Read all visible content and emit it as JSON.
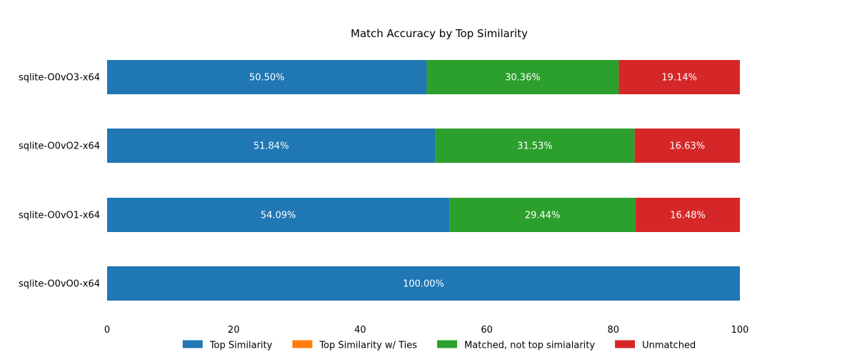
{
  "chart_data": {
    "type": "bar",
    "orientation": "horizontal",
    "stacked": true,
    "title": "Match Accuracy by Top Similarity",
    "categories": [
      "sqlite-O0vO3-x64",
      "sqlite-O0vO2-x64",
      "sqlite-O0vO1-x64",
      "sqlite-O0vO0-x64"
    ],
    "series": [
      {
        "name": "Top Similarity",
        "color": "#1f77b4",
        "values": [
          50.5,
          51.84,
          54.09,
          100.0
        ],
        "labels": [
          "50.50%",
          "51.84%",
          "54.09%",
          "100.00%"
        ]
      },
      {
        "name": "Top Similarity w/ Ties",
        "color": "#ff7f0e",
        "values": [
          0,
          0,
          0,
          0
        ],
        "labels": [
          "",
          "",
          "",
          ""
        ]
      },
      {
        "name": "Matched, not top simialarity",
        "color": "#2ca02c",
        "values": [
          30.36,
          31.53,
          29.44,
          0
        ],
        "labels": [
          "30.36%",
          "31.53%",
          "29.44%",
          ""
        ]
      },
      {
        "name": "Unmatched",
        "color": "#d62728",
        "values": [
          19.14,
          16.63,
          16.48,
          0
        ],
        "labels": [
          "19.14%",
          "16.63%",
          "16.48%",
          ""
        ]
      }
    ],
    "xlim": [
      0,
      100
    ],
    "xticks": [
      "0",
      "20",
      "40",
      "60",
      "80",
      "100"
    ],
    "xlabel": "",
    "ylabel": "",
    "grid": false,
    "legend_position": "bottom"
  }
}
